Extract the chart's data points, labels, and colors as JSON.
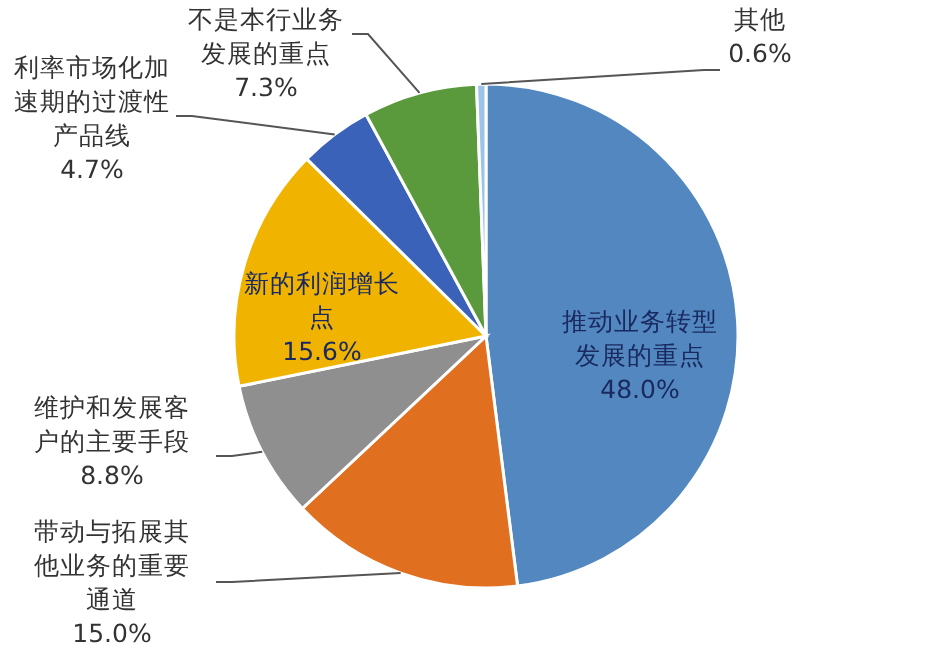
{
  "chart_data": {
    "type": "pie",
    "categories": [
      "推动业务转型发展的重点",
      "带动与拓展其他业务的重要通道",
      "维护和发展客户的主要手段",
      "新的利润增长点",
      "利率市场化加速期的过渡性产品线",
      "不是本行业务发展的重点",
      "其他"
    ],
    "values": [
      48.0,
      15.0,
      8.8,
      15.6,
      4.7,
      7.3,
      0.6
    ],
    "value_labels": [
      "48.0%",
      "15.0%",
      "8.8%",
      "15.6%",
      "4.7%",
      "7.3%",
      "0.6%"
    ],
    "colors": [
      "#5287c0",
      "#e07020",
      "#8f8f8f",
      "#f0b400",
      "#3a62b8",
      "#5b9a3c",
      "#9dc3e6"
    ],
    "legend": false
  }
}
